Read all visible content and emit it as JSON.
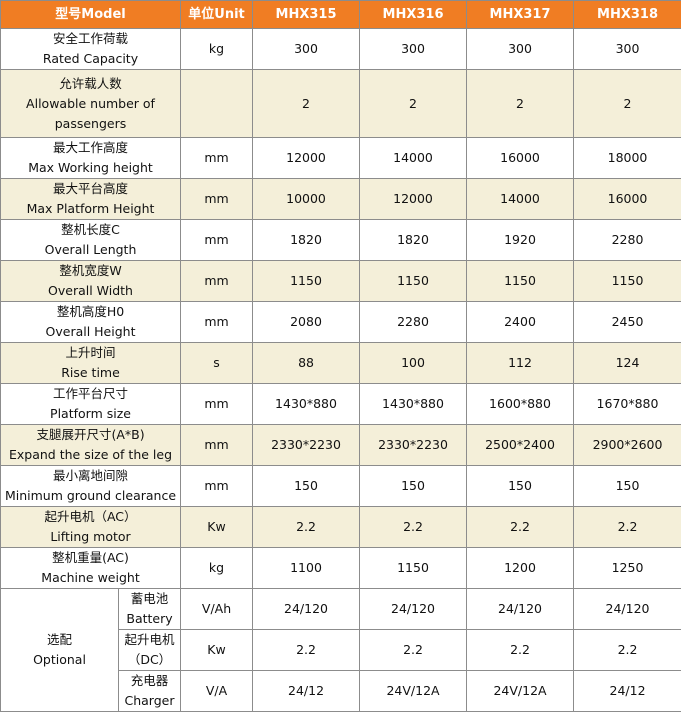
{
  "header": {
    "model": "型号Model",
    "unit": "单位Unit",
    "models": [
      "MHX315",
      "MHX316",
      "MHX317",
      "MHX318"
    ]
  },
  "rows": [
    {
      "cn": "安全工作荷载",
      "en": "Rated Capacity",
      "unit": "kg",
      "values": [
        "300",
        "300",
        "300",
        "300"
      ]
    },
    {
      "cn": "允许载人数",
      "en": "Allowable number of",
      "en2": "passengers",
      "unit": "",
      "values": [
        "2",
        "2",
        "2",
        "2"
      ]
    },
    {
      "cn": "最大工作高度",
      "en": "Max Working height",
      "unit": "mm",
      "values": [
        "12000",
        "14000",
        "16000",
        "18000"
      ]
    },
    {
      "cn": "最大平台高度",
      "en": "Max Platform Height",
      "unit": "mm",
      "values": [
        "10000",
        "12000",
        "14000",
        "16000"
      ]
    },
    {
      "cn": "整机长度C",
      "en": "Overall Length",
      "unit": "mm",
      "values": [
        "1820",
        "1820",
        "1920",
        "2280"
      ]
    },
    {
      "cn": "整机宽度W",
      "en": "Overall Width",
      "unit": "mm",
      "values": [
        "1150",
        "1150",
        "1150",
        "1150"
      ]
    },
    {
      "cn": "整机高度H0",
      "en": "Overall Height",
      "unit": "mm",
      "values": [
        "2080",
        "2280",
        "2400",
        "2450"
      ]
    },
    {
      "cn": "上升时间",
      "en": "Rise time",
      "unit": "s",
      "values": [
        "88",
        "100",
        "112",
        "124"
      ]
    },
    {
      "cn": "工作平台尺寸",
      "en": "Platform size",
      "unit": "mm",
      "values": [
        "1430*880",
        "1430*880",
        "1600*880",
        "1670*880"
      ]
    },
    {
      "cn": "支腿展开尺寸(A*B)",
      "en": "Expand the size of the leg",
      "unit": "mm",
      "values": [
        "2330*2230",
        "2330*2230",
        "2500*2400",
        "2900*2600"
      ]
    },
    {
      "cn": "最小离地间隙",
      "en": "Minimum ground clearance",
      "unit": "mm",
      "values": [
        "150",
        "150",
        "150",
        "150"
      ]
    },
    {
      "cn": "起升电机（AC）",
      "en": "Lifting motor",
      "unit": "Kw",
      "values": [
        "2.2",
        "2.2",
        "2.2",
        "2.2"
      ]
    },
    {
      "cn": "整机重量(AC)",
      "en": "Machine weight",
      "unit": "kg",
      "values": [
        "1100",
        "1150",
        "1200",
        "1250"
      ]
    }
  ],
  "optional": {
    "cn": "选配",
    "en": "Optional",
    "rows": [
      {
        "cn": "蓄电池",
        "en": "Battery",
        "unit": "V/Ah",
        "values": [
          "24/120",
          "24/120",
          "24/120",
          "24/120"
        ]
      },
      {
        "cn": "起升电机",
        "en": "（DC）",
        "unit": "Kw",
        "values": [
          "2.2",
          "2.2",
          "2.2",
          "2.2"
        ]
      },
      {
        "cn": "充电器",
        "en": "Charger",
        "unit": "V/A",
        "values": [
          "24/12",
          "24V/12A",
          "24V/12A",
          "24/12"
        ]
      }
    ]
  },
  "colors": {
    "header_bg": "#f07d23",
    "shaded_row": "#f4efd9"
  }
}
